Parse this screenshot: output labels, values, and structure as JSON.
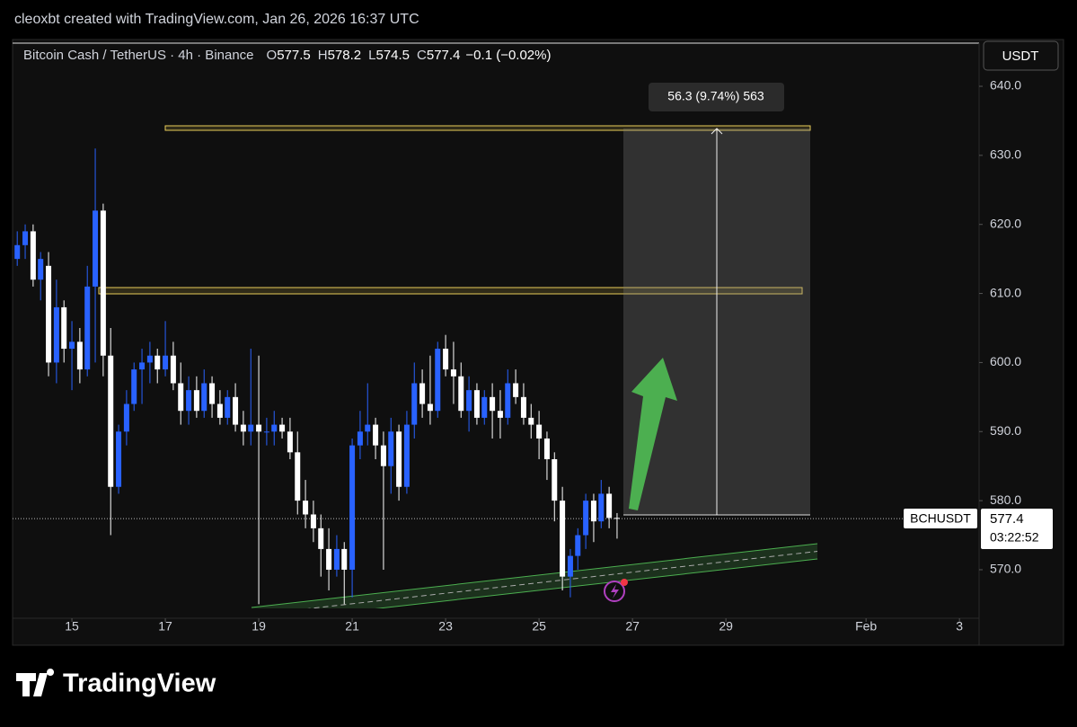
{
  "header": {
    "credit": "cleoxbt created with TradingView.com, Jan 26, 2026 16:37 UTC",
    "symbol": "Bitcoin Cash / TetherUS · 4h · Binance",
    "ohlc": [
      {
        "label": "O",
        "value": "577.5"
      },
      {
        "label": "H",
        "value": "578.2"
      },
      {
        "label": "L",
        "value": "574.5"
      },
      {
        "label": "C",
        "value": "577.4"
      }
    ],
    "change": "−0.1 (−0.02%)"
  },
  "brand": "TradingView",
  "chart_data": {
    "type": "candlestick",
    "currency": "USDT",
    "symbol_tag": "BCHUSDT",
    "last_price": 577.4,
    "countdown": "03:22:52",
    "measure_label": "56.3 (9.74%) 563",
    "up_color": "#2962ff",
    "down_color": "#ffffff",
    "x": [
      13.83,
      14,
      14.17,
      14.33,
      14.5,
      14.67,
      14.83,
      15,
      15.17,
      15.33,
      15.5,
      15.67,
      15.83,
      16,
      16.17,
      16.33,
      16.5,
      16.67,
      16.83,
      17,
      17.17,
      17.33,
      17.5,
      17.67,
      17.83,
      18,
      18.17,
      18.33,
      18.5,
      18.67,
      18.83,
      19,
      19.17,
      19.33,
      19.5,
      19.67,
      19.83,
      20,
      20.17,
      20.33,
      20.5,
      20.67,
      20.83,
      21,
      21.17,
      21.33,
      21.5,
      21.67,
      21.83,
      22,
      22.17,
      22.33,
      22.5,
      22.67,
      22.83,
      23,
      23.17,
      23.33,
      23.5,
      23.67,
      23.83,
      24,
      24.17,
      24.33,
      24.5,
      24.67,
      24.83,
      25,
      25.17,
      25.33,
      25.5,
      25.67,
      25.83,
      26,
      26.17,
      26.33,
      26.5,
      26.67
    ],
    "open": [
      615,
      617,
      619,
      612,
      614,
      600,
      608,
      602,
      603,
      599,
      611,
      622,
      601,
      582,
      590,
      594,
      599,
      600,
      601,
      599,
      601,
      597,
      593,
      596,
      593,
      597,
      594,
      592,
      595,
      591,
      590,
      591,
      590,
      590,
      591,
      590,
      587,
      580,
      578,
      576,
      573,
      570,
      573,
      570,
      588,
      590,
      591,
      588,
      585,
      590,
      582,
      591,
      597,
      594,
      593,
      602,
      599,
      598,
      593,
      596,
      592,
      595,
      593,
      592,
      597,
      595,
      592,
      591,
      589,
      586,
      580,
      569,
      572,
      575,
      580,
      577,
      581,
      577.5
    ],
    "high": [
      619,
      620,
      620,
      616,
      616,
      612,
      609,
      606,
      605,
      614,
      631,
      623,
      605,
      591,
      596,
      600,
      602,
      603,
      602,
      606,
      603,
      600,
      598,
      598,
      599,
      598,
      596,
      596,
      597,
      593,
      602,
      601,
      592,
      593,
      592,
      592,
      590,
      583,
      580,
      578,
      576,
      575,
      574,
      589,
      593,
      597,
      592,
      590,
      592,
      591,
      593,
      600,
      599,
      601,
      603,
      604,
      603,
      600,
      598,
      597,
      596,
      597,
      596,
      599,
      599,
      597,
      594,
      593,
      590,
      587,
      582,
      573,
      576,
      581,
      581,
      583,
      582,
      578.2
    ],
    "low": [
      614,
      615,
      611,
      609,
      598,
      597,
      600,
      596,
      597,
      598,
      600,
      598,
      575,
      581,
      588,
      593,
      594,
      597,
      597,
      598,
      596,
      591,
      591,
      592,
      592,
      592,
      591,
      591,
      590,
      588,
      588,
      565,
      588,
      588,
      589,
      586,
      578,
      576,
      574,
      569,
      567,
      569,
      565,
      566,
      586,
      588,
      586,
      570,
      581,
      580,
      581,
      589,
      592,
      591,
      592,
      598,
      594,
      592,
      590,
      591,
      591,
      589,
      589,
      591,
      594,
      591,
      589,
      586,
      583,
      577,
      567,
      566,
      570,
      573,
      574,
      576,
      576,
      574.5
    ],
    "close": [
      617,
      619,
      612,
      615,
      600,
      608,
      602,
      603,
      599,
      611,
      622,
      601,
      582,
      590,
      594,
      599,
      600,
      601,
      599,
      601,
      597,
      593,
      596,
      593,
      597,
      594,
      592,
      595,
      591,
      590,
      591,
      590,
      590,
      591,
      590,
      587,
      580,
      578,
      576,
      573,
      570,
      573,
      570,
      588,
      590,
      591,
      588,
      585,
      590,
      582,
      591,
      597,
      594,
      593,
      602,
      599,
      598,
      593,
      596,
      592,
      595,
      593,
      592,
      597,
      595,
      592,
      591,
      589,
      586,
      580,
      569,
      572,
      575,
      580,
      577,
      581,
      577.5,
      577.4
    ],
    "xlim": [
      13.73,
      34.42
    ],
    "xticks": [
      15,
      17,
      19,
      21,
      23,
      25,
      27,
      29,
      {
        "value": 32,
        "label": "Feb"
      },
      {
        "value": 34,
        "label": "3"
      }
    ],
    "ylim": [
      564.4,
      646.25
    ],
    "yticks": [
      {
        "value": 570,
        "label": "570.0"
      },
      {
        "value": 580,
        "label": "580.0"
      },
      {
        "value": 590,
        "label": "590.0"
      },
      {
        "value": 600,
        "label": "600.0"
      },
      {
        "value": 610,
        "label": "610.0"
      },
      {
        "value": 620,
        "label": "620.0"
      },
      {
        "value": 630,
        "label": "630.0"
      },
      {
        "value": 640,
        "label": "640.0"
      }
    ]
  }
}
